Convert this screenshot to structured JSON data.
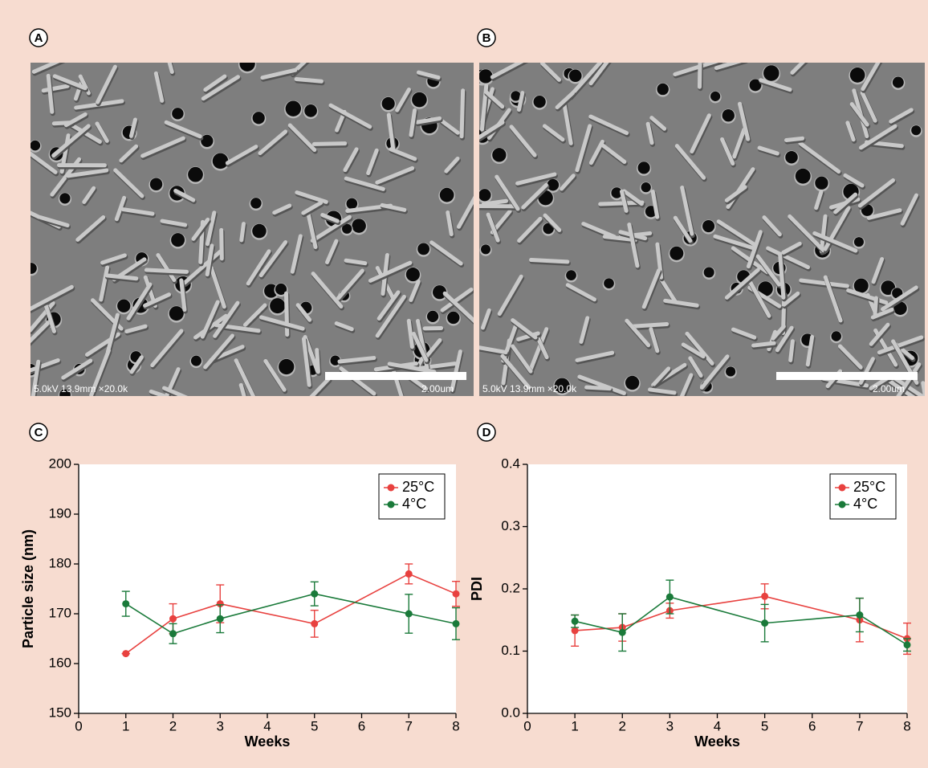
{
  "panels": [
    {
      "label": "A",
      "image_caption": "5.0kV 13.9mm ×20.0k",
      "scale_bar": "2.00um"
    },
    {
      "label": "B",
      "image_caption": "5.0kV 13.9mm ×20.0k",
      "scale_bar": "2.00um"
    },
    {
      "label": "C"
    },
    {
      "label": "D"
    }
  ],
  "chart_data": [
    {
      "type": "line",
      "x_label": "Weeks",
      "y_label": "Particle size (nm)",
      "x": [
        1,
        2,
        3,
        5,
        7,
        8
      ],
      "xlim": [
        0,
        8
      ],
      "xticks": [
        0,
        1,
        2,
        3,
        4,
        5,
        6,
        7,
        8
      ],
      "ylim": [
        150,
        200
      ],
      "yticks": [
        150,
        160,
        170,
        180,
        190,
        200
      ],
      "legend": "upper right",
      "series": [
        {
          "name": "25°C",
          "color": "#e8413f",
          "values": [
            162,
            169,
            172,
            168,
            178,
            174
          ],
          "errors": [
            0,
            3,
            3.8,
            2.7,
            2,
            2.5
          ]
        },
        {
          "name": "4°C",
          "color": "#1a7a3a",
          "values": [
            172,
            166,
            169,
            174,
            170,
            168
          ],
          "errors": [
            2.5,
            2,
            2.8,
            2.4,
            3.9,
            3.2
          ]
        }
      ]
    },
    {
      "type": "line",
      "x_label": "Weeks",
      "y_label": "PDI",
      "x": [
        1,
        2,
        3,
        5,
        7,
        8
      ],
      "xlim": [
        0,
        8
      ],
      "xticks": [
        0,
        1,
        2,
        3,
        4,
        5,
        6,
        7,
        8
      ],
      "ylim": [
        0,
        0.4
      ],
      "yticks": [
        {
          "value": 0,
          "label": "0.0"
        },
        0.1,
        0.2,
        0.3,
        0.4
      ],
      "legend": "upper right",
      "series": [
        {
          "name": "25°C",
          "color": "#e8413f",
          "values": [
            0.133,
            0.138,
            0.165,
            0.188,
            0.15,
            0.12
          ],
          "errors": [
            0.025,
            0.022,
            0.012,
            0.02,
            0.035,
            0.025
          ]
        },
        {
          "name": "4°C",
          "color": "#1a7a3a",
          "values": [
            0.148,
            0.13,
            0.187,
            0.145,
            0.158,
            0.11
          ],
          "errors": [
            0.01,
            0.03,
            0.027,
            0.03,
            0.027,
            0.01
          ]
        }
      ]
    }
  ]
}
